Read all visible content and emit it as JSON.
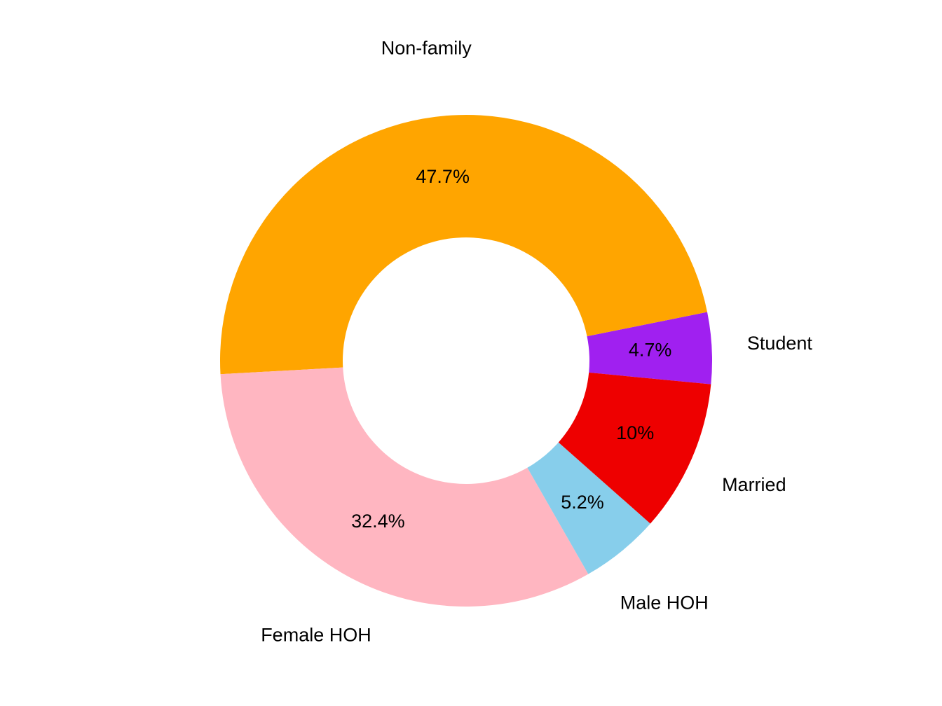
{
  "chart_data": {
    "type": "pie",
    "style": "donut",
    "categories": [
      "Student",
      "Non-family",
      "Female HOH",
      "Male HOH",
      "Married"
    ],
    "values": [
      4.7,
      47.7,
      32.4,
      5.2,
      10.0
    ],
    "value_labels": [
      "4.7%",
      "47.7%",
      "32.4%",
      "5.2%",
      "10%"
    ],
    "colors": [
      "#A020F0",
      "#FFA500",
      "#FFB6C1",
      "#87CEEB",
      "#EE0000"
    ],
    "label_placement": "outside",
    "value_label_placement": "inside-ring"
  }
}
